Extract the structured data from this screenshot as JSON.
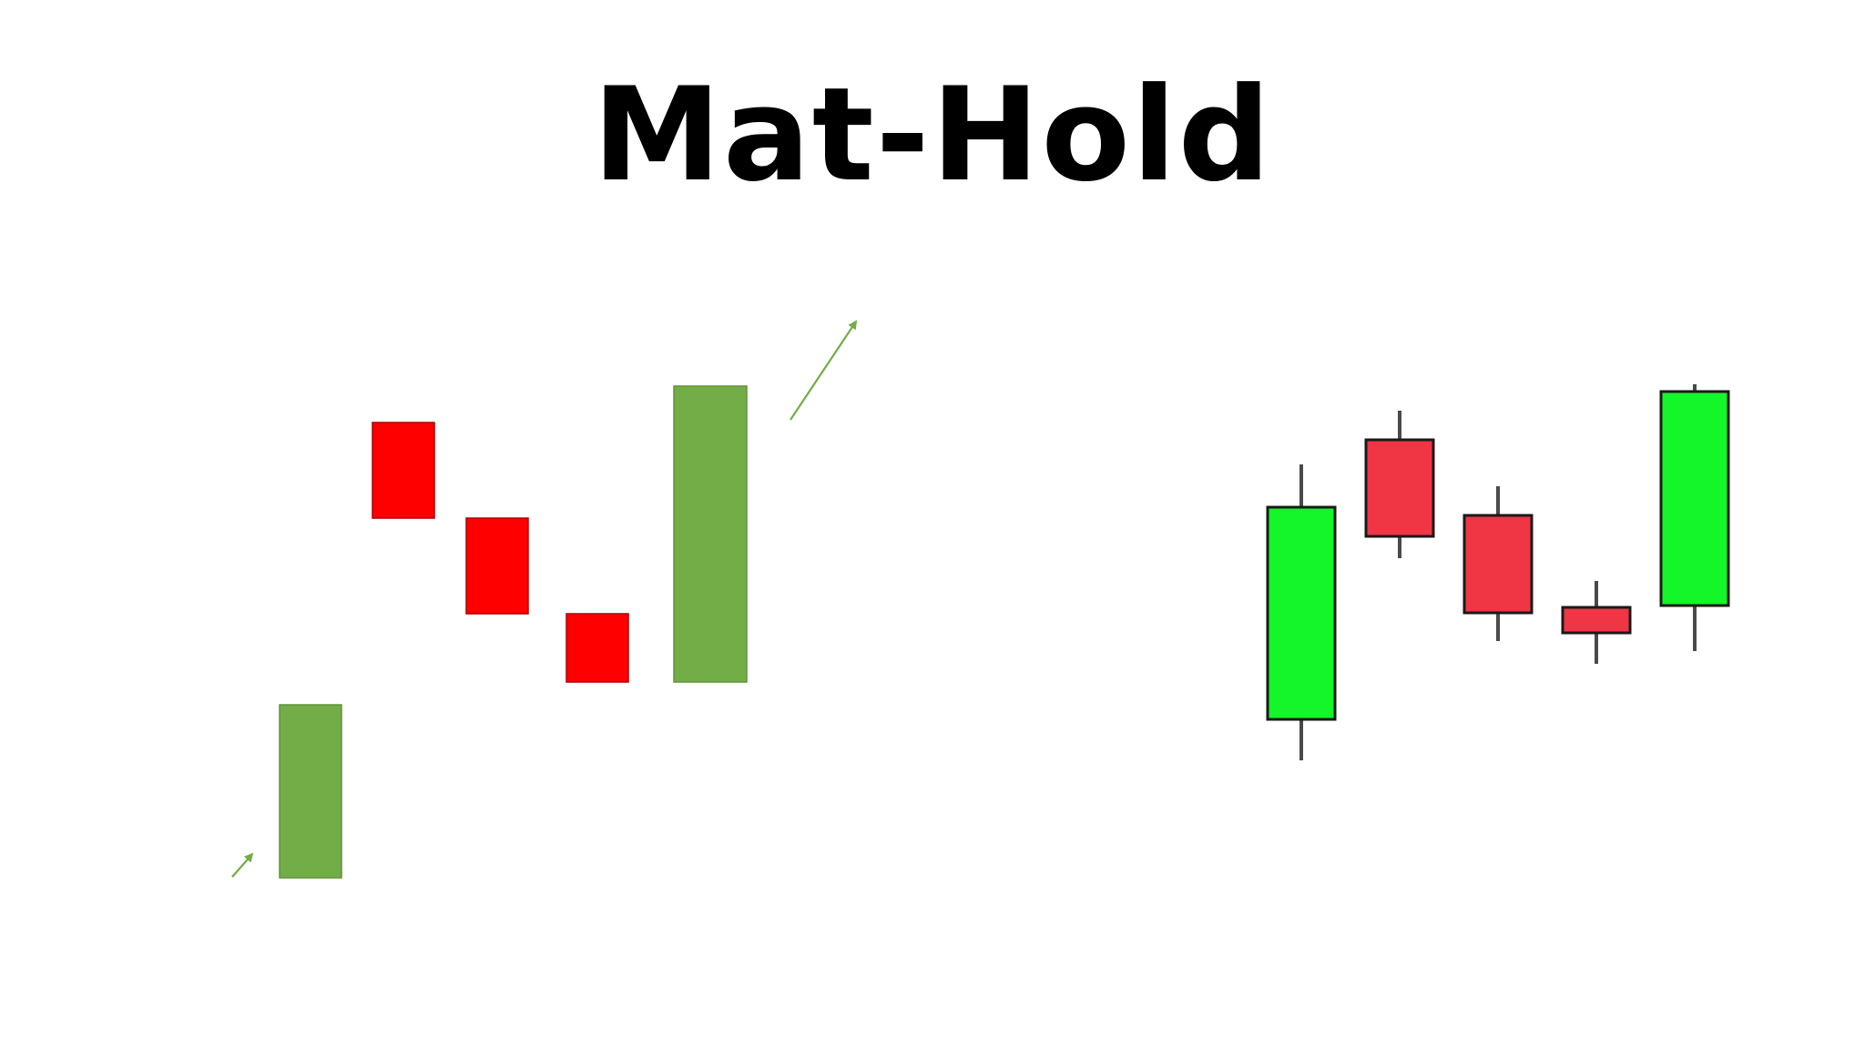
{
  "title": "Mat-Hold",
  "colors": {
    "left_bullish": "#72ad47",
    "left_bearish": "#ff0000",
    "left_arrow": "#72ad47",
    "right_bullish": "#14f52a",
    "right_bearish": "#f03545",
    "wick": "#4a4a4a",
    "outline": "#1a1a1a"
  },
  "schematic_pattern": {
    "candles": [
      {
        "direction": "up",
        "open": 0.0,
        "close": 1.9
      },
      {
        "direction": "down",
        "open": 5.0,
        "close": 3.95
      },
      {
        "direction": "down",
        "open": 3.95,
        "close": 2.9
      },
      {
        "direction": "down",
        "open": 2.9,
        "close": 2.15
      },
      {
        "direction": "up",
        "open": 2.15,
        "close": 5.4
      }
    ],
    "arrows": [
      "entry-trend-up",
      "continuation-up"
    ]
  },
  "ohlc_pattern": {
    "candles": [
      {
        "direction": "up",
        "open": 0.45,
        "high": 3.25,
        "low": 0.0,
        "close": 2.78
      },
      {
        "direction": "down",
        "open": 3.52,
        "high": 3.84,
        "low": 2.22,
        "close": 2.46
      },
      {
        "direction": "down",
        "open": 2.69,
        "high": 3.01,
        "low": 1.31,
        "close": 1.62
      },
      {
        "direction": "down",
        "open": 1.68,
        "high": 1.97,
        "low": 1.06,
        "close": 1.4
      },
      {
        "direction": "up",
        "open": 1.7,
        "high": 4.13,
        "low": 1.2,
        "close": 4.05
      }
    ]
  }
}
